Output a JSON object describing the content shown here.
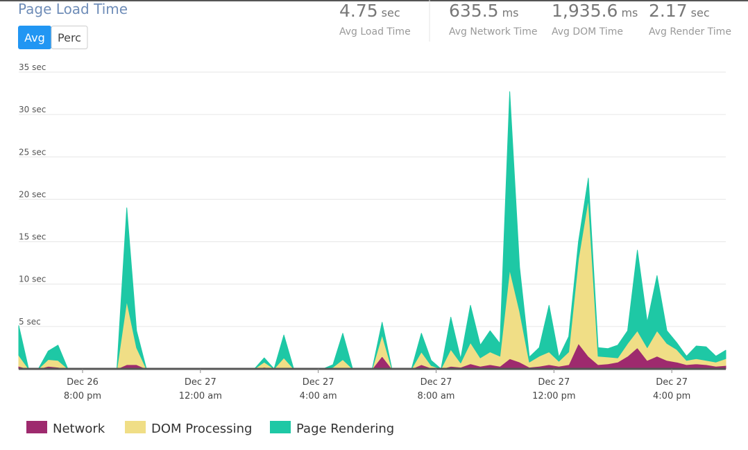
{
  "header": {
    "title": "Page Load Time",
    "toggle": [
      "Avg",
      "Perc"
    ]
  },
  "stats": [
    {
      "value": "4.75",
      "unit": "sec",
      "label": "Avg Load Time"
    },
    {
      "value": "635.5",
      "unit": "ms",
      "label": "Avg Network Time"
    },
    {
      "value": "1,935.6",
      "unit": "ms",
      "label": "Avg DOM Time"
    },
    {
      "value": "2.17",
      "unit": "sec",
      "label": "Avg Render Time"
    }
  ],
  "chart_data": {
    "type": "stacked-area",
    "x": [
      "Dec 26 5:50 pm",
      "Dec 26 6:10 pm",
      "Dec 26 6:30 pm",
      "Dec 26 6:50 pm",
      "Dec 26 7:10 pm",
      "Dec 26 7:30 pm",
      "Dec 26 7:50 pm",
      "Dec 26 8:10 pm",
      "Dec 26 8:30 pm",
      "Dec 26 8:50 pm",
      "Dec 26 9:10 pm",
      "Dec 26 9:30 pm",
      "Dec 26 9:50 pm",
      "Dec 26 10:10 pm",
      "Dec 26 10:30 pm",
      "Dec 26 10:50 pm",
      "Dec 26 11:10 pm",
      "Dec 26 11:30 pm",
      "Dec 26 11:50 pm",
      "Dec 27 12:10 am",
      "Dec 27 12:30 am",
      "Dec 27 12:50 am",
      "Dec 27 1:10 am",
      "Dec 27 1:30 am",
      "Dec 27 1:50 am",
      "Dec 27 2:10 am",
      "Dec 27 2:30 am",
      "Dec 27 2:50 am",
      "Dec 27 3:10 am",
      "Dec 27 3:30 am",
      "Dec 27 3:50 am",
      "Dec 27 4:10 am",
      "Dec 27 4:30 am",
      "Dec 27 4:50 am",
      "Dec 27 5:10 am",
      "Dec 27 5:30 am",
      "Dec 27 5:50 am",
      "Dec 27 6:10 am",
      "Dec 27 6:30 am",
      "Dec 27 6:50 am",
      "Dec 27 7:10 am",
      "Dec 27 7:30 am",
      "Dec 27 7:50 am",
      "Dec 27 8:10 am",
      "Dec 27 8:30 am",
      "Dec 27 8:50 am",
      "Dec 27 9:10 am",
      "Dec 27 9:30 am",
      "Dec 27 9:50 am",
      "Dec 27 10:10 am",
      "Dec 27 10:30 am",
      "Dec 27 10:50 am",
      "Dec 27 11:10 am",
      "Dec 27 11:30 am",
      "Dec 27 11:50 am",
      "Dec 27 12:10 pm",
      "Dec 27 12:30 pm",
      "Dec 27 12:50 pm",
      "Dec 27 1:10 pm",
      "Dec 27 1:30 pm",
      "Dec 27 1:50 pm",
      "Dec 27 2:10 pm",
      "Dec 27 2:30 pm",
      "Dec 27 2:50 pm",
      "Dec 27 3:10 pm",
      "Dec 27 3:30 pm",
      "Dec 27 3:50 pm",
      "Dec 27 4:10 pm",
      "Dec 27 4:30 pm",
      "Dec 27 4:50 pm",
      "Dec 27 5:10 pm",
      "Dec 27 5:30 pm",
      "Dec 27 5:50 pm"
    ],
    "series": [
      {
        "name": "Network",
        "color": "#9e2a6e",
        "values": [
          0.3,
          0,
          0,
          0.3,
          0.2,
          0,
          0,
          0,
          0,
          0,
          0,
          0.5,
          0.5,
          0,
          0,
          0,
          0,
          0,
          0,
          0,
          0,
          0,
          0,
          0,
          0,
          0.2,
          0,
          0.1,
          0,
          0,
          0,
          0,
          0,
          0.1,
          0,
          0,
          0,
          1.5,
          0,
          0,
          0,
          0.5,
          0.1,
          0,
          0.3,
          0.2,
          0.6,
          0.3,
          0.5,
          0.3,
          1.2,
          0.8,
          0.2,
          0.3,
          0.5,
          0.3,
          0.5,
          3,
          1.5,
          0.5,
          0.6,
          0.8,
          1.5,
          2.5,
          1,
          1.5,
          1,
          0.8,
          0.5,
          0.6,
          0.5,
          0.3,
          0.4
        ]
      },
      {
        "name": "DOM Processing",
        "color": "#f0de86",
        "values": [
          1.3,
          0,
          0,
          0.8,
          0.8,
          0,
          0,
          0,
          0,
          0,
          0,
          7.5,
          2,
          0,
          0,
          0,
          0,
          0,
          0,
          0,
          0,
          0,
          0,
          0,
          0,
          0.6,
          0,
          1.2,
          0,
          0,
          0,
          0,
          0.2,
          1,
          0,
          0,
          0,
          2.5,
          0,
          0,
          0,
          1.5,
          0.3,
          0,
          2,
          0.5,
          2.5,
          1,
          1.5,
          1.2,
          10.5,
          6,
          0.6,
          1.2,
          1.5,
          0.6,
          1.5,
          10,
          18.5,
          1,
          0.8,
          0.5,
          1.5,
          2,
          1.5,
          3,
          2,
          1.5,
          0.5,
          0.6,
          0.5,
          0.5,
          0.8
        ]
      },
      {
        "name": "Page Rendering",
        "color": "#1ec8a5",
        "values": [
          3.5,
          0,
          0,
          1,
          1.8,
          0,
          0,
          0,
          0,
          0,
          0,
          11,
          2,
          0,
          0,
          0,
          0,
          0,
          0,
          0,
          0,
          0,
          0,
          0,
          0,
          0.5,
          0,
          2.7,
          0,
          0,
          0,
          0,
          0.3,
          3.1,
          0,
          0,
          0,
          1.5,
          0,
          0,
          0,
          2.2,
          0.6,
          0,
          3.8,
          0.5,
          4.4,
          1.5,
          2.5,
          1.5,
          21,
          5.2,
          0.6,
          1,
          5.5,
          0.5,
          1.8,
          2,
          2.5,
          1,
          1,
          1.5,
          1.5,
          9.5,
          3,
          6.5,
          1.5,
          0.8,
          0.5,
          1.5,
          1.6,
          0.7,
          1
        ]
      }
    ],
    "xlim": [
      "Dec 26 5:50 pm",
      "Dec 27 5:50 pm"
    ],
    "xticks": [
      {
        "value": "Dec 26 8:00 pm",
        "label": [
          "Dec 26",
          "8:00 pm"
        ]
      },
      {
        "value": "Dec 27 12:00 am",
        "label": [
          "Dec 27",
          "12:00 am"
        ]
      },
      {
        "value": "Dec 27 4:00 am",
        "label": [
          "Dec 27",
          "4:00 am"
        ]
      },
      {
        "value": "Dec 27 8:00 am",
        "label": [
          "Dec 27",
          "8:00 am"
        ]
      },
      {
        "value": "Dec 27 12:00 pm",
        "label": [
          "Dec 27",
          "12:00 pm"
        ]
      },
      {
        "value": "Dec 27 4:00 pm",
        "label": [
          "Dec 27",
          "4:00 pm"
        ]
      }
    ],
    "ylim": [
      0,
      35
    ],
    "yticks": [
      {
        "value": 5,
        "label": "5 sec"
      },
      {
        "value": 10,
        "label": "10 sec"
      },
      {
        "value": 15,
        "label": "15 sec"
      },
      {
        "value": 20,
        "label": "20 sec"
      },
      {
        "value": 25,
        "label": "25 sec"
      },
      {
        "value": 30,
        "label": "30 sec"
      },
      {
        "value": 35,
        "label": "35 sec"
      }
    ],
    "grid": true,
    "legend": "bottom"
  }
}
